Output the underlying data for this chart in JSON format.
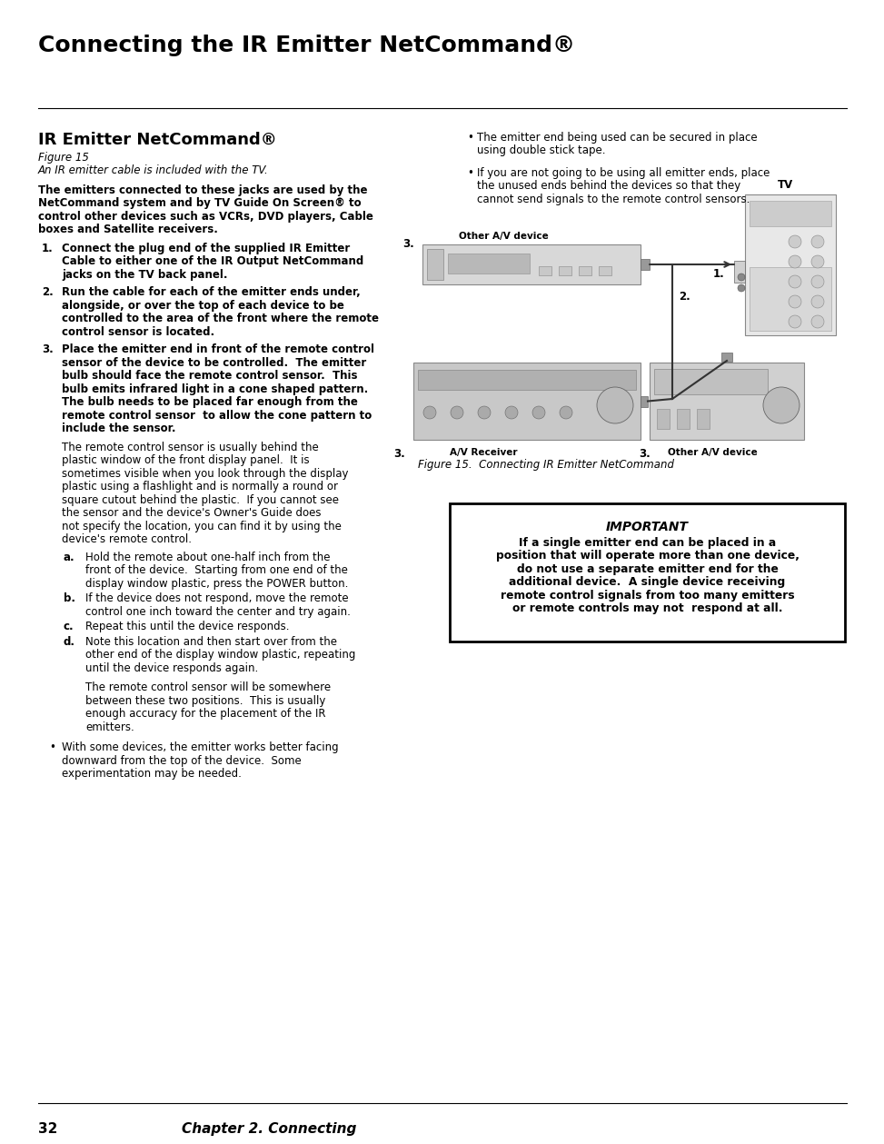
{
  "page_title": "Connecting the IR Emitter NetCommand®",
  "section_title": "IR Emitter NetCommand®",
  "figure_label": "Figure 15",
  "figure_caption": "An IR emitter cable is included with the TV.",
  "intro_text_lines": [
    "The emitters connected to these jacks are used by the",
    "NetCommand system and by TV Guide On Screen® to",
    "control other devices such as VCRs, DVD players, Cable",
    "boxes and Satellite receivers."
  ],
  "item1_lines": [
    "Connect the plug end of the supplied IR Emitter",
    "Cable to either one of the IR Output NetCommand",
    "jacks on the TV back panel."
  ],
  "item2_lines": [
    "Run the cable for each of the emitter ends under,",
    "alongside, or over the top of each device to be",
    "controlled to the area of the front where the remote",
    "control sensor is located."
  ],
  "item3_lines": [
    "Place the emitter end in front of the remote control",
    "sensor of the device to be controlled.  The emitter",
    "bulb should face the remote control sensor.  This",
    "bulb emits infrared light in a cone shaped pattern.",
    "The bulb needs to be placed far enough from the",
    "remote control sensor  to allow the cone pattern to",
    "include the sensor."
  ],
  "item3b_lines": [
    "The remote control sensor is usually behind the",
    "plastic window of the front display panel.  It is",
    "sometimes visible when you look through the display",
    "plastic using a flashlight and is normally a round or",
    "square cutout behind the plastic.  If you cannot see",
    "the sensor and the device's Owner's Guide does",
    "not specify the location, you can find it by using the",
    "device's remote control."
  ],
  "sub_items": [
    {
      "label": "a.",
      "lines": [
        "Hold the remote about one-half inch from the",
        "front of the device.  Starting from one end of the",
        "display window plastic, press the POWER button."
      ]
    },
    {
      "label": "b.",
      "lines": [
        "If the device does not respond, move the remote",
        "control one inch toward the center and try again."
      ]
    },
    {
      "label": "c.",
      "lines": [
        "Repeat this until the device responds."
      ]
    },
    {
      "label": "d.",
      "lines": [
        "Note this location and then start over from the",
        "other end of the display window plastic, repeating",
        "until the device responds again."
      ]
    }
  ],
  "item_d_extra_lines": [
    "The remote control sensor will be somewhere",
    "between these two positions.  This is usually",
    "enough accuracy for the placement of the IR",
    "emitters."
  ],
  "bullet1_lines": [
    "With some devices, the emitter works better facing",
    "downward from the top of the device.  Some",
    "experimentation may be needed."
  ],
  "right_bullet1_lines": [
    "The emitter end being used can be secured in place",
    "using double stick tape."
  ],
  "right_bullet2_lines": [
    "If you are not going to be using all emitter ends, place",
    "the unused ends behind the devices so that they",
    "cannot send signals to the remote control sensors."
  ],
  "figure_bottom_caption": "Figure 15.  Connecting IR Emitter NetCommand",
  "important_title": "IMPORTANT",
  "imp_line1": "If a single emitter end can be placed in a",
  "imp_line2": "position that will operate more than one device,",
  "imp_line3": "do not use a separate emitter end for the",
  "imp_line4": "additional device.  A single device receiving",
  "imp_line5": "remote control signals from too many emitters",
  "imp_line6": "or remote controls may not  respond at all.",
  "footer_page": "32",
  "footer_chapter": "Chapter 2. Connecting",
  "bg_color": "#ffffff",
  "text_color": "#000000"
}
